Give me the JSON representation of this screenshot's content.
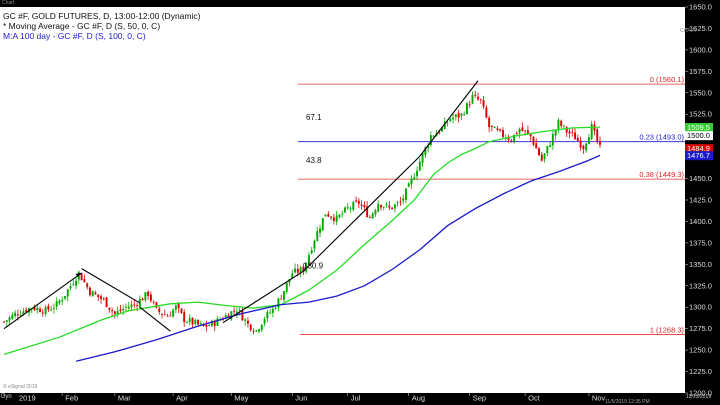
{
  "window": {
    "tab_label": "Chart",
    "tab_label_right": "CHART",
    "bottom_left_label": "Dyn",
    "bottom_right_label": "12/23/2019",
    "timestamp": "11/5/2019 12:35 PM",
    "watermark": "© eSignal 2019"
  },
  "legend": {
    "title": "GC #F, GOLD FUTURES, D, 13:00-12:00 (Dynamic)",
    "ma50": "* Moving Average - GC #F, D (S, 50, 0, C)",
    "ma100": "M:A 100 day - GC #F, D (S, 100, 0, C)"
  },
  "colors": {
    "background": "#ffffff",
    "up_candle": "#00aa00",
    "down_candle": "#dd0000",
    "ma50": "#22dd22",
    "ma100": "#1a1acc",
    "fib": "#ee3333",
    "trendline": "#000000"
  },
  "chart_data": {
    "type": "candlestick",
    "y_range": [
      1200,
      1650
    ],
    "y_ticks": [
      1200,
      1225,
      1250,
      1275,
      1300,
      1325,
      1350,
      1375,
      1400,
      1425,
      1450,
      1475,
      1500,
      1525,
      1550,
      1575,
      1600,
      1625,
      1650
    ],
    "x_tick_labels": [
      "2019",
      "Feb",
      "Mar",
      "Apr",
      "May",
      "Jun",
      "Jul",
      "Aug",
      "Sep",
      "Oct",
      "Nov"
    ],
    "x_tick_positions": [
      0,
      21,
      40,
      61,
      82,
      104,
      124,
      146,
      168,
      188,
      211
    ],
    "session_count": 215,
    "candle_anchors": [
      [
        0,
        1283
      ],
      [
        4,
        1292
      ],
      [
        10,
        1300
      ],
      [
        15,
        1296
      ],
      [
        19,
        1303
      ],
      [
        22,
        1315
      ],
      [
        27,
        1340
      ],
      [
        31,
        1318
      ],
      [
        36,
        1308
      ],
      [
        40,
        1292
      ],
      [
        44,
        1300
      ],
      [
        47,
        1303
      ],
      [
        52,
        1316
      ],
      [
        55,
        1296
      ],
      [
        59,
        1290
      ],
      [
        62,
        1300
      ],
      [
        65,
        1286
      ],
      [
        68,
        1282
      ],
      [
        72,
        1277
      ],
      [
        76,
        1282
      ],
      [
        80,
        1290
      ],
      [
        84,
        1298
      ],
      [
        88,
        1280
      ],
      [
        91,
        1273
      ],
      [
        94,
        1288
      ],
      [
        97,
        1297
      ],
      [
        100,
        1313
      ],
      [
        104,
        1340
      ],
      [
        108,
        1344
      ],
      [
        112,
        1380
      ],
      [
        116,
        1410
      ],
      [
        120,
        1403
      ],
      [
        124,
        1415
      ],
      [
        128,
        1422
      ],
      [
        132,
        1405
      ],
      [
        135,
        1422
      ],
      [
        139,
        1415
      ],
      [
        143,
        1422
      ],
      [
        146,
        1440
      ],
      [
        150,
        1470
      ],
      [
        154,
        1500
      ],
      [
        158,
        1508
      ],
      [
        161,
        1520
      ],
      [
        165,
        1524
      ],
      [
        169,
        1545
      ],
      [
        172,
        1540
      ],
      [
        175,
        1510
      ],
      [
        179,
        1502
      ],
      [
        183,
        1496
      ],
      [
        186,
        1508
      ],
      [
        190,
        1499
      ],
      [
        194,
        1471
      ],
      [
        197,
        1492
      ],
      [
        200,
        1515
      ],
      [
        203,
        1505
      ],
      [
        206,
        1498
      ],
      [
        209,
        1487
      ],
      [
        212,
        1510
      ],
      [
        215,
        1485
      ]
    ],
    "moving_averages": [
      {
        "name": "Moving Average (S, 50)",
        "points": [
          [
            0,
            1245
          ],
          [
            20,
            1265
          ],
          [
            35,
            1285
          ],
          [
            45,
            1296
          ],
          [
            60,
            1304
          ],
          [
            70,
            1306
          ],
          [
            80,
            1302
          ],
          [
            90,
            1299
          ],
          [
            100,
            1303
          ],
          [
            110,
            1320
          ],
          [
            120,
            1343
          ],
          [
            130,
            1373
          ],
          [
            140,
            1401
          ],
          [
            148,
            1425
          ],
          [
            155,
            1455
          ],
          [
            160,
            1468
          ],
          [
            165,
            1478
          ],
          [
            170,
            1485
          ],
          [
            175,
            1493
          ],
          [
            185,
            1500
          ],
          [
            195,
            1505
          ],
          [
            205,
            1509
          ],
          [
            215,
            1510
          ]
        ]
      },
      {
        "name": "M:A 100 day",
        "points": [
          [
            26,
            1237
          ],
          [
            40,
            1248
          ],
          [
            55,
            1262
          ],
          [
            70,
            1278
          ],
          [
            85,
            1292
          ],
          [
            100,
            1303
          ],
          [
            110,
            1306
          ],
          [
            120,
            1313
          ],
          [
            130,
            1325
          ],
          [
            140,
            1344
          ],
          [
            150,
            1367
          ],
          [
            160,
            1395
          ],
          [
            170,
            1415
          ],
          [
            180,
            1432
          ],
          [
            190,
            1447
          ],
          [
            200,
            1458
          ],
          [
            210,
            1470
          ],
          [
            215,
            1477
          ]
        ]
      }
    ],
    "fibonacci_levels": [
      {
        "label": "0 (1560.1)",
        "value": 1560.1
      },
      {
        "label": "0.23 (1493.0)",
        "value": 1493.0
      },
      {
        "label": "0.38 (1449.3)",
        "value": 1449.3
      },
      {
        "label": "1 (1268.3)",
        "value": 1268.3
      }
    ],
    "trendlines": [
      [
        [
          0,
          1275
        ],
        [
          28,
          1340
        ]
      ],
      [
        [
          28,
          1345
        ],
        [
          49,
          1305
        ]
      ],
      [
        [
          49,
          1300
        ],
        [
          60,
          1272
        ]
      ],
      [
        [
          79,
          1282
        ],
        [
          108,
          1342
        ]
      ],
      [
        [
          108,
          1342
        ],
        [
          150,
          1476
        ]
      ],
      [
        [
          150,
          1476
        ],
        [
          171,
          1564
        ]
      ]
    ],
    "annotations": [
      {
        "text": "67.1",
        "x": 173,
        "y": 1518
      },
      {
        "text": "43.8",
        "x": 173,
        "y": 1468
      },
      {
        "text": "180.9",
        "x": 171,
        "y": 1345
      }
    ],
    "price_labels": [
      {
        "text": "1509.5",
        "value": 1509.5,
        "color": "#33cc33"
      },
      {
        "text": "1500.0",
        "value": 1500.0,
        "color": "#ffffff"
      },
      {
        "text": "1484.9",
        "value": 1484.9,
        "color": "#dd0000"
      },
      {
        "text": "1476.7",
        "value": 1476.7,
        "color": "#1a1acc"
      }
    ]
  }
}
